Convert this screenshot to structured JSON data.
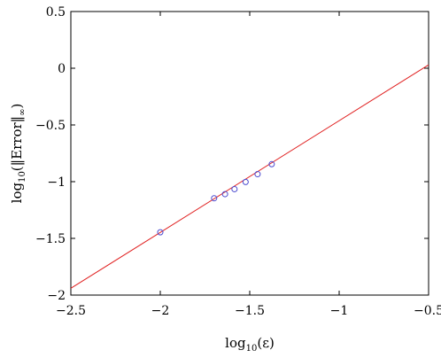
{
  "chart_data": {
    "type": "scatter",
    "title": "",
    "xlabel_base": "log",
    "xlabel_sub": "10",
    "xlabel_arg": "(ε)",
    "ylabel_base": "log",
    "ylabel_sub": "10",
    "ylabel_arg": "(‖Error‖",
    "ylabel_arg_sub": "∞",
    "ylabel_close": ")",
    "xlim": [
      -2.5,
      -0.5
    ],
    "ylim": [
      -2,
      0.5
    ],
    "x_ticks": [
      -2.5,
      -2,
      -1.5,
      -1,
      -0.5
    ],
    "x_tick_labels": [
      "−2.5",
      "−2",
      "−1.5",
      "−1",
      "−0.5"
    ],
    "y_ticks": [
      -2,
      -1.5,
      -1,
      -0.5,
      0,
      0.5
    ],
    "y_tick_labels": [
      "−2",
      "−1.5",
      "−1",
      "−0.5",
      "0",
      "0.5"
    ],
    "grid": false,
    "series": [
      {
        "kind": "markers",
        "marker": "circle",
        "color": "#4a4ad0",
        "x": [
          -2.0,
          -1.699,
          -1.638,
          -1.585,
          -1.523,
          -1.456,
          -1.377
        ],
        "y": [
          -1.446,
          -1.146,
          -1.11,
          -1.066,
          -1.003,
          -0.934,
          -0.846
        ]
      },
      {
        "kind": "line",
        "color": "#e02020",
        "x": [
          -2.5,
          -0.5
        ],
        "y": [
          -1.94,
          0.03
        ]
      }
    ]
  }
}
